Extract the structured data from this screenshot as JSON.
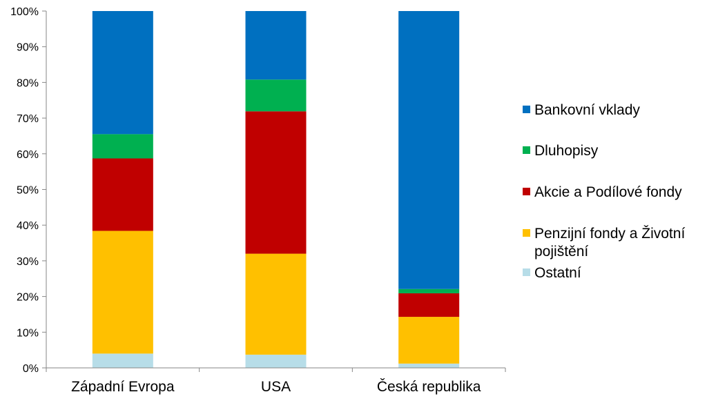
{
  "chart_data": {
    "type": "bar",
    "stacked": true,
    "percent": true,
    "categories": [
      "Západní Evropa",
      "USA",
      "Česká republika"
    ],
    "series": [
      {
        "name": "Ostatní",
        "color": "#b7dde8",
        "values": [
          4,
          3.7,
          1.2
        ]
      },
      {
        "name": "Penzijní fondy a Životní pojištění",
        "color": "#ffc000",
        "values": [
          34.4,
          28.3,
          13.1
        ]
      },
      {
        "name": "Akcie a Podílové fondy",
        "color": "#c00000",
        "values": [
          20.3,
          39.9,
          6.6
        ]
      },
      {
        "name": "Dluhopisy",
        "color": "#00b050",
        "values": [
          6.8,
          8.9,
          1.2
        ]
      },
      {
        "name": "Bankovní vklady",
        "color": "#0070c0",
        "values": [
          34.5,
          19.2,
          77.9
        ]
      }
    ],
    "ylim": [
      0,
      100
    ],
    "yticks": [
      "0%",
      "10%",
      "20%",
      "30%",
      "40%",
      "50%",
      "60%",
      "70%",
      "80%",
      "90%",
      "100%"
    ],
    "legend": {
      "position": "right",
      "entries": [
        {
          "lines": [
            "Bankovní vklady"
          ],
          "color": "#0070c0"
        },
        {
          "lines": [
            "Dluhopisy"
          ],
          "color": "#00b050"
        },
        {
          "lines": [
            "Akcie a Podílové fondy"
          ],
          "color": "#c00000"
        },
        {
          "lines": [
            "Penzijní fondy a Životní",
            "pojištění"
          ],
          "color": "#ffc000"
        },
        {
          "lines": [
            "Ostatní"
          ],
          "color": "#b7dde8"
        }
      ]
    },
    "grid": false
  }
}
